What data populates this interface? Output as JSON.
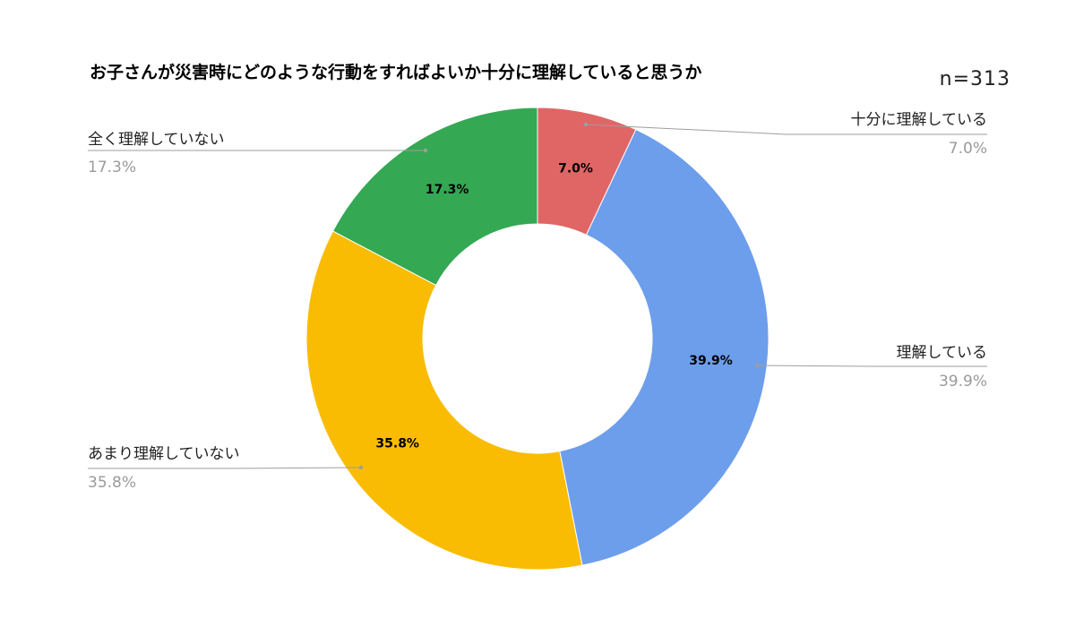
{
  "chart_data": {
    "type": "pie",
    "subtype": "donut",
    "title": "お子さんが災害時にどのような行動をすればよいか十分に理解していると思うか",
    "annotation": "n=313",
    "legend": "outside labels with leader lines",
    "slices": [
      {
        "label": "十分に理解している",
        "value": 7.0,
        "display": "7.0%",
        "color": "#e06666"
      },
      {
        "label": "理解している",
        "value": 39.9,
        "display": "39.9%",
        "color": "#6d9eeb"
      },
      {
        "label": "あまり理解していない",
        "value": 35.8,
        "display": "35.8%",
        "color": "#f9bc02"
      },
      {
        "label": "全く理解していない",
        "value": 17.3,
        "display": "17.3%",
        "color": "#34a853"
      }
    ]
  }
}
